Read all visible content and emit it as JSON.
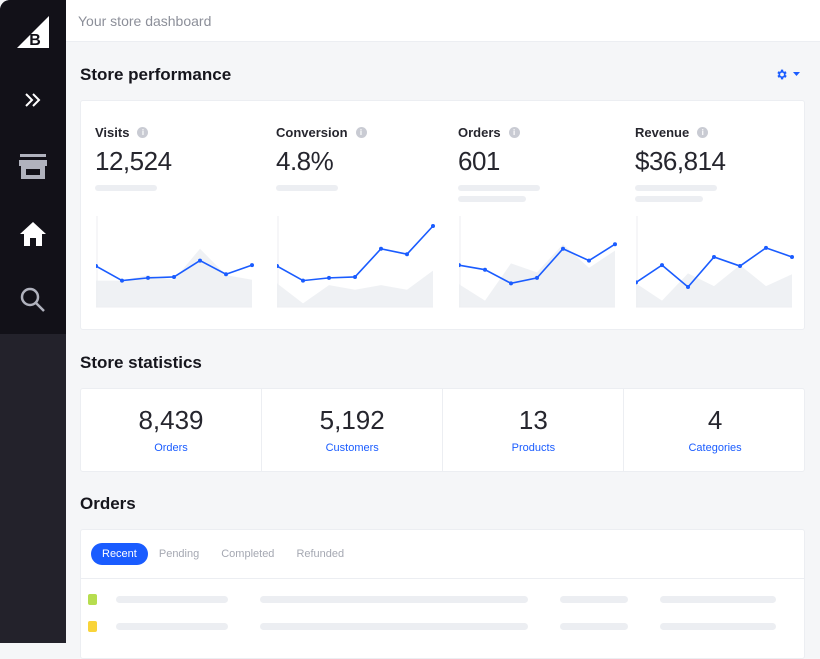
{
  "header": {
    "title": "Your store dashboard"
  },
  "sidebar": {
    "items": [
      {
        "icon": "bigcommerce-logo"
      },
      {
        "icon": "expand-chevrons-icon"
      },
      {
        "icon": "storefront-icon"
      },
      {
        "icon": "home-icon"
      },
      {
        "icon": "search-icon"
      }
    ]
  },
  "performance": {
    "title": "Store performance",
    "settings_icon": "gear-icon",
    "metrics": [
      {
        "label": "Visits",
        "value": "12,524"
      },
      {
        "label": "Conversion",
        "value": "4.8%"
      },
      {
        "label": "Orders",
        "value": "601"
      },
      {
        "label": "Revenue",
        "value": "$36,814"
      }
    ]
  },
  "chart_data": [
    {
      "type": "line",
      "name": "Visits",
      "ylim": [
        0,
        100
      ],
      "series": [
        {
          "name": "current",
          "values": [
            45,
            29,
            32,
            33,
            51,
            36,
            46
          ]
        },
        {
          "name": "previous",
          "values": [
            29,
            29,
            35,
            30,
            64,
            35,
            30
          ]
        }
      ]
    },
    {
      "type": "line",
      "name": "Conversion",
      "ylim": [
        0,
        100
      ],
      "series": [
        {
          "name": "current",
          "values": [
            45,
            29,
            32,
            33,
            64,
            58,
            89
          ]
        },
        {
          "name": "previous",
          "values": [
            26,
            4,
            24,
            19,
            24,
            19,
            40
          ]
        }
      ]
    },
    {
      "type": "line",
      "name": "Orders",
      "ylim": [
        0,
        100
      ],
      "series": [
        {
          "name": "current",
          "values": [
            46,
            41,
            26,
            32,
            64,
            51,
            69
          ]
        },
        {
          "name": "previous",
          "values": [
            25,
            7,
            48,
            38,
            69,
            43,
            62
          ]
        }
      ]
    },
    {
      "type": "line",
      "name": "Revenue",
      "ylim": [
        0,
        100
      ],
      "series": [
        {
          "name": "current",
          "values": [
            27,
            46,
            22,
            55,
            45,
            65,
            55
          ]
        },
        {
          "name": "previous",
          "values": [
            26,
            7,
            37,
            23,
            46,
            23,
            36
          ]
        }
      ]
    }
  ],
  "statistics": {
    "title": "Store statistics",
    "items": [
      {
        "value": "8,439",
        "label": "Orders"
      },
      {
        "value": "5,192",
        "label": "Customers"
      },
      {
        "value": "13",
        "label": "Products"
      },
      {
        "value": "4",
        "label": "Categories"
      }
    ]
  },
  "orders": {
    "title": "Orders",
    "tabs": [
      "Recent",
      "Pending",
      "Completed",
      "Refunded"
    ],
    "active_tab": "Recent",
    "rows": [
      {
        "status_color": "#b6dd4f"
      },
      {
        "status_color": "#f9d43a"
      }
    ]
  },
  "colors": {
    "accent": "#1a5cff",
    "sidebar": "#121118"
  }
}
